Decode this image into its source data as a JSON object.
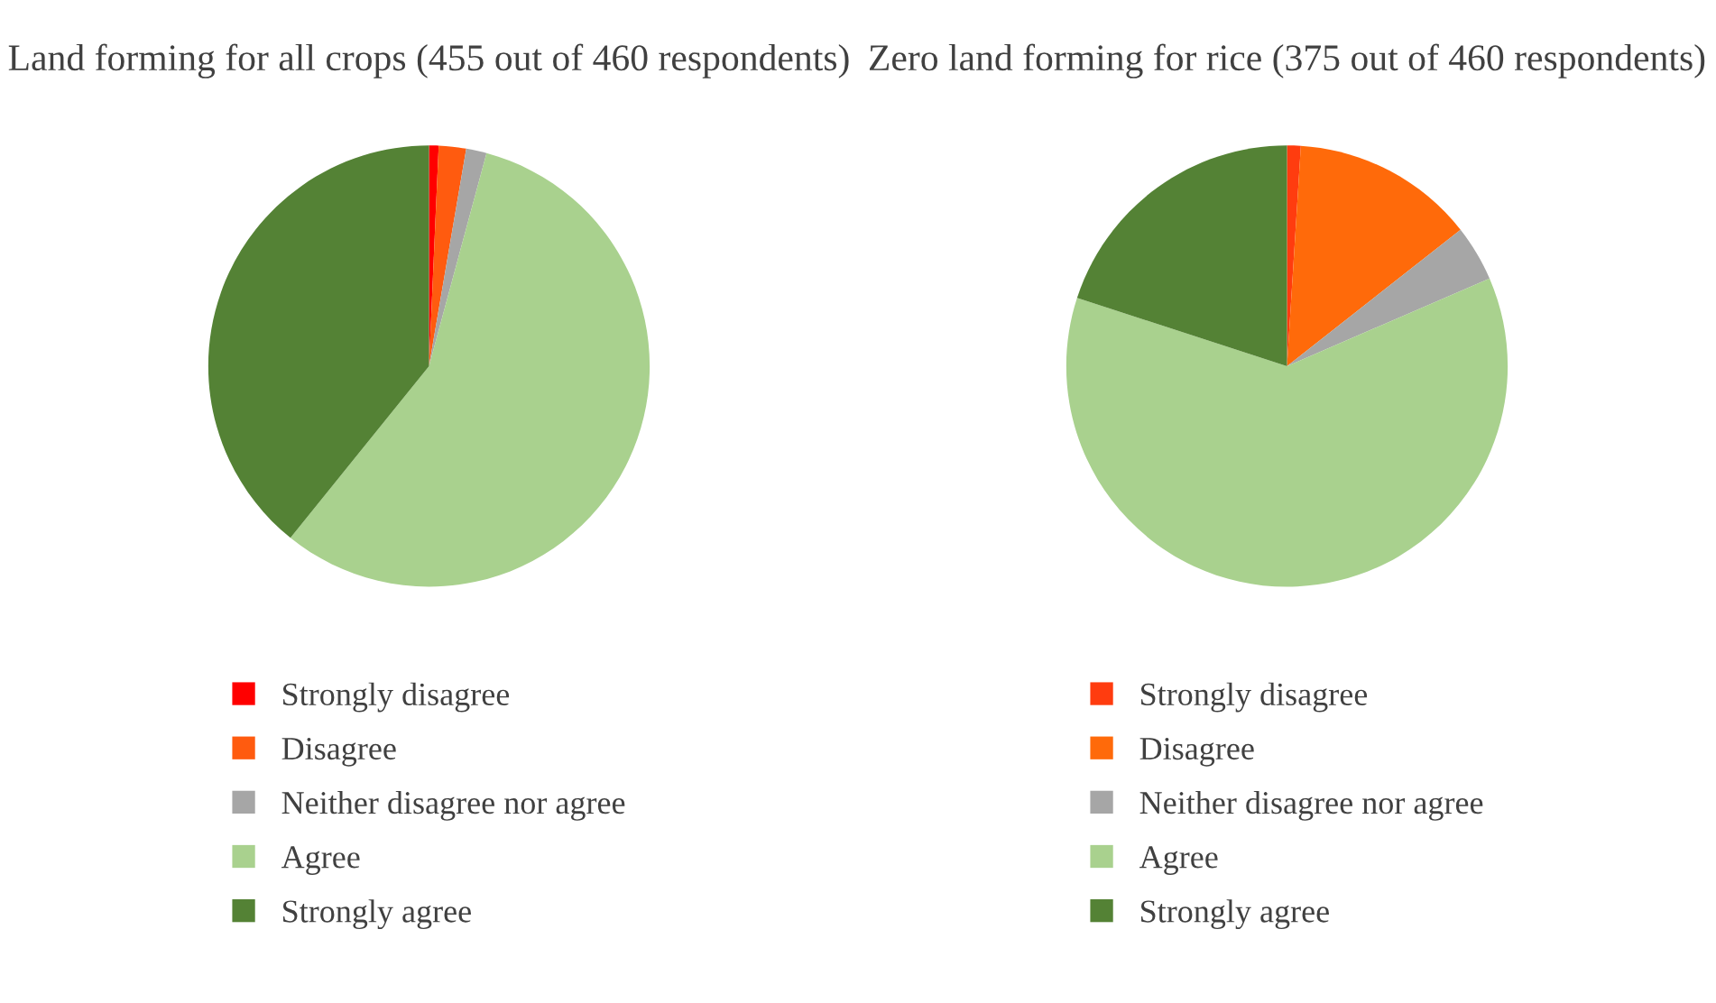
{
  "chart_data": [
    {
      "type": "pie",
      "title": "Land forming for all crops (455 out of 460 respondents)",
      "categories": [
        "Strongly disagree",
        "Disagree",
        "Neither disagree nor agree",
        "Agree",
        "Strongly agree"
      ],
      "values": [
        0.7,
        2,
        1.5,
        56.6,
        39.2
      ],
      "colors": [
        "#ff0000",
        "#ff5b0f",
        "#a6a6a6",
        "#a9d18e",
        "#548235"
      ],
      "legend": "bottom"
    },
    {
      "type": "pie",
      "title": "Zero land forming for rice (375 out of 460 respondents)",
      "categories": [
        "Strongly disagree",
        "Disagree",
        "Neither disagree nor agree",
        "Agree",
        "Strongly agree"
      ],
      "values": [
        1,
        13.4,
        4.1,
        61.5,
        20
      ],
      "colors": [
        "#ff3c0f",
        "#ff6a0a",
        "#a6a6a6",
        "#a9d18e",
        "#548235"
      ],
      "legend": "bottom"
    }
  ]
}
